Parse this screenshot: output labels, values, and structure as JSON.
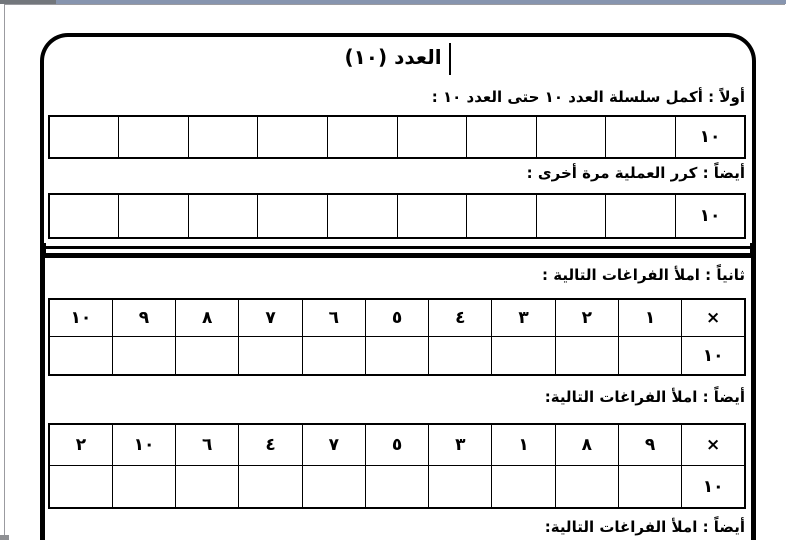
{
  "chrome": {
    "top_strip_right_color": "#8795af",
    "top_strip_left_color": "#73777c",
    "page_border_color": "#9b9ba0"
  },
  "worksheet": {
    "title": "العدد (١٠)",
    "box1": {
      "instruction_first": "أولاً : أكمل سلسلة العدد ١٠ حتى العدد ١٠ :",
      "series_table_1": {
        "cells_rtl": [
          "١٠",
          "",
          "",
          "",
          "",
          "",
          "",
          "",
          "",
          ""
        ]
      },
      "instruction_repeat": "أيضاً : كرر العملية مرة أخرى :",
      "series_table_2": {
        "cells_rtl": [
          "١٠",
          "",
          "",
          "",
          "",
          "",
          "",
          "",
          "",
          ""
        ]
      }
    },
    "box2": {
      "instruction_second": "ثانياً : املأ الفراغات التالية :",
      "multiplication_table_1": {
        "header_rtl": [
          "×",
          "١",
          "٢",
          "٣",
          "٤",
          "٥",
          "٦",
          "٧",
          "٨",
          "٩",
          "١٠"
        ],
        "answer_rtl": [
          "١٠",
          "",
          "",
          "",
          "",
          "",
          "",
          "",
          "",
          "",
          ""
        ]
      },
      "instruction_also_1": "أيضاً : املأ الفراغات التالية:",
      "multiplication_table_2": {
        "header_rtl": [
          "×",
          "٩",
          "٨",
          "١",
          "٣",
          "٥",
          "٧",
          "٤",
          "٦",
          "١٠",
          "٢"
        ],
        "answer_rtl": [
          "١٠",
          "",
          "",
          "",
          "",
          "",
          "",
          "",
          "",
          "",
          ""
        ]
      },
      "instruction_also_2": "أيضاً : املأ الفراغات التالية:"
    }
  }
}
